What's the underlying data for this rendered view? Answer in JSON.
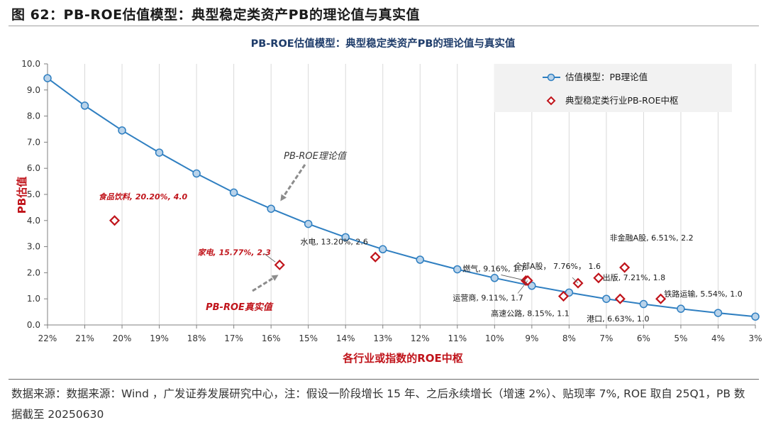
{
  "figure_title": "图 62：PB-ROE估值模型：典型稳定类资产PB的理论值与真实值",
  "source_note": "数据来源：数据来源：Wind ，广发证券发展研究中心，注：假设一阶段增长 15 年、之后永续增长（增速 2%）、贴现率 7%, ROE 取自 25Q1，PB 数据截至 20250630",
  "chart_data": {
    "type": "line",
    "title": "PB-ROE估值模型：典型稳定类资产PB的理论值与真实值",
    "xlabel": "各行业或指数的ROE中枢",
    "ylabel": "PB估值",
    "x_axis": {
      "reversed": true,
      "range": [
        22,
        3
      ],
      "ticks": [
        22,
        21,
        20,
        19,
        18,
        17,
        16,
        15,
        14,
        13,
        12,
        11,
        10,
        9,
        8,
        7,
        6,
        5,
        4,
        3
      ],
      "tick_labels": [
        "22%",
        "21%",
        "20%",
        "19%",
        "18%",
        "17%",
        "16%",
        "15%",
        "14%",
        "13%",
        "12%",
        "11%",
        "10%",
        "9%",
        "8%",
        "7%",
        "6%",
        "5%",
        "4%",
        "3%"
      ]
    },
    "y_axis": {
      "range": [
        0,
        10
      ],
      "ticks": [
        0,
        1,
        2,
        3,
        4,
        5,
        6,
        7,
        8,
        9,
        10
      ],
      "tick_labels": [
        "0.0",
        "1.0",
        "2.0",
        "3.0",
        "4.0",
        "5.0",
        "6.0",
        "7.0",
        "8.0",
        "9.0",
        "10.0"
      ]
    },
    "grid": {
      "vertical": true,
      "horizontal": false
    },
    "legend": {
      "position": "top-right",
      "entries": [
        {
          "name": "估值模型：PB理论值",
          "marker": "circle-line"
        },
        {
          "name": "典型稳定类行业PB-ROE中枢",
          "marker": "diamond"
        }
      ]
    },
    "series": [
      {
        "name": "估值模型：PB理论值",
        "type": "line",
        "color": "#2f7fc1",
        "x": [
          22,
          21,
          20,
          19,
          18,
          17,
          16,
          15,
          14,
          13,
          12,
          11,
          10,
          9,
          8,
          7,
          6,
          5,
          4,
          3
        ],
        "y": [
          9.45,
          8.4,
          7.45,
          6.6,
          5.8,
          5.07,
          4.45,
          3.87,
          3.36,
          2.9,
          2.5,
          2.13,
          1.8,
          1.5,
          1.24,
          1.0,
          0.8,
          0.62,
          0.46,
          0.32
        ]
      },
      {
        "name": "典型稳定类行业PB-ROE中枢",
        "type": "scatter",
        "color": "#c0141b",
        "points": [
          {
            "label": "食品饮料, 20.20%, 4.0",
            "x": 20.2,
            "y": 4.0
          },
          {
            "label": "家电, 15.77%, 2.3",
            "x": 15.77,
            "y": 2.3
          },
          {
            "label": "水电, 13.20%, 2.6",
            "x": 13.2,
            "y": 2.6
          },
          {
            "label": "燃气, 9.16%, 1.7",
            "x": 9.16,
            "y": 1.7
          },
          {
            "label": "运营商, 9.11%, 1.7",
            "x": 9.11,
            "y": 1.7
          },
          {
            "label": "高速公路, 8.15%, 1.1",
            "x": 8.15,
            "y": 1.1
          },
          {
            "label": "全部A股， 7.76%， 1.6",
            "x": 7.76,
            "y": 1.6
          },
          {
            "label": "出版, 7.21%, 1.8",
            "x": 7.21,
            "y": 1.8
          },
          {
            "label": "港口, 6.63%, 1.0",
            "x": 6.63,
            "y": 1.0
          },
          {
            "label": "非金融A股, 6.51%, 2.2",
            "x": 6.51,
            "y": 2.2
          },
          {
            "label": "铁路运输, 5.54%, 1.0",
            "x": 5.54,
            "y": 1.0
          }
        ]
      }
    ],
    "annotations": [
      {
        "text": "PB-ROE理论值"
      },
      {
        "text": "PB-ROE真实值"
      }
    ]
  }
}
